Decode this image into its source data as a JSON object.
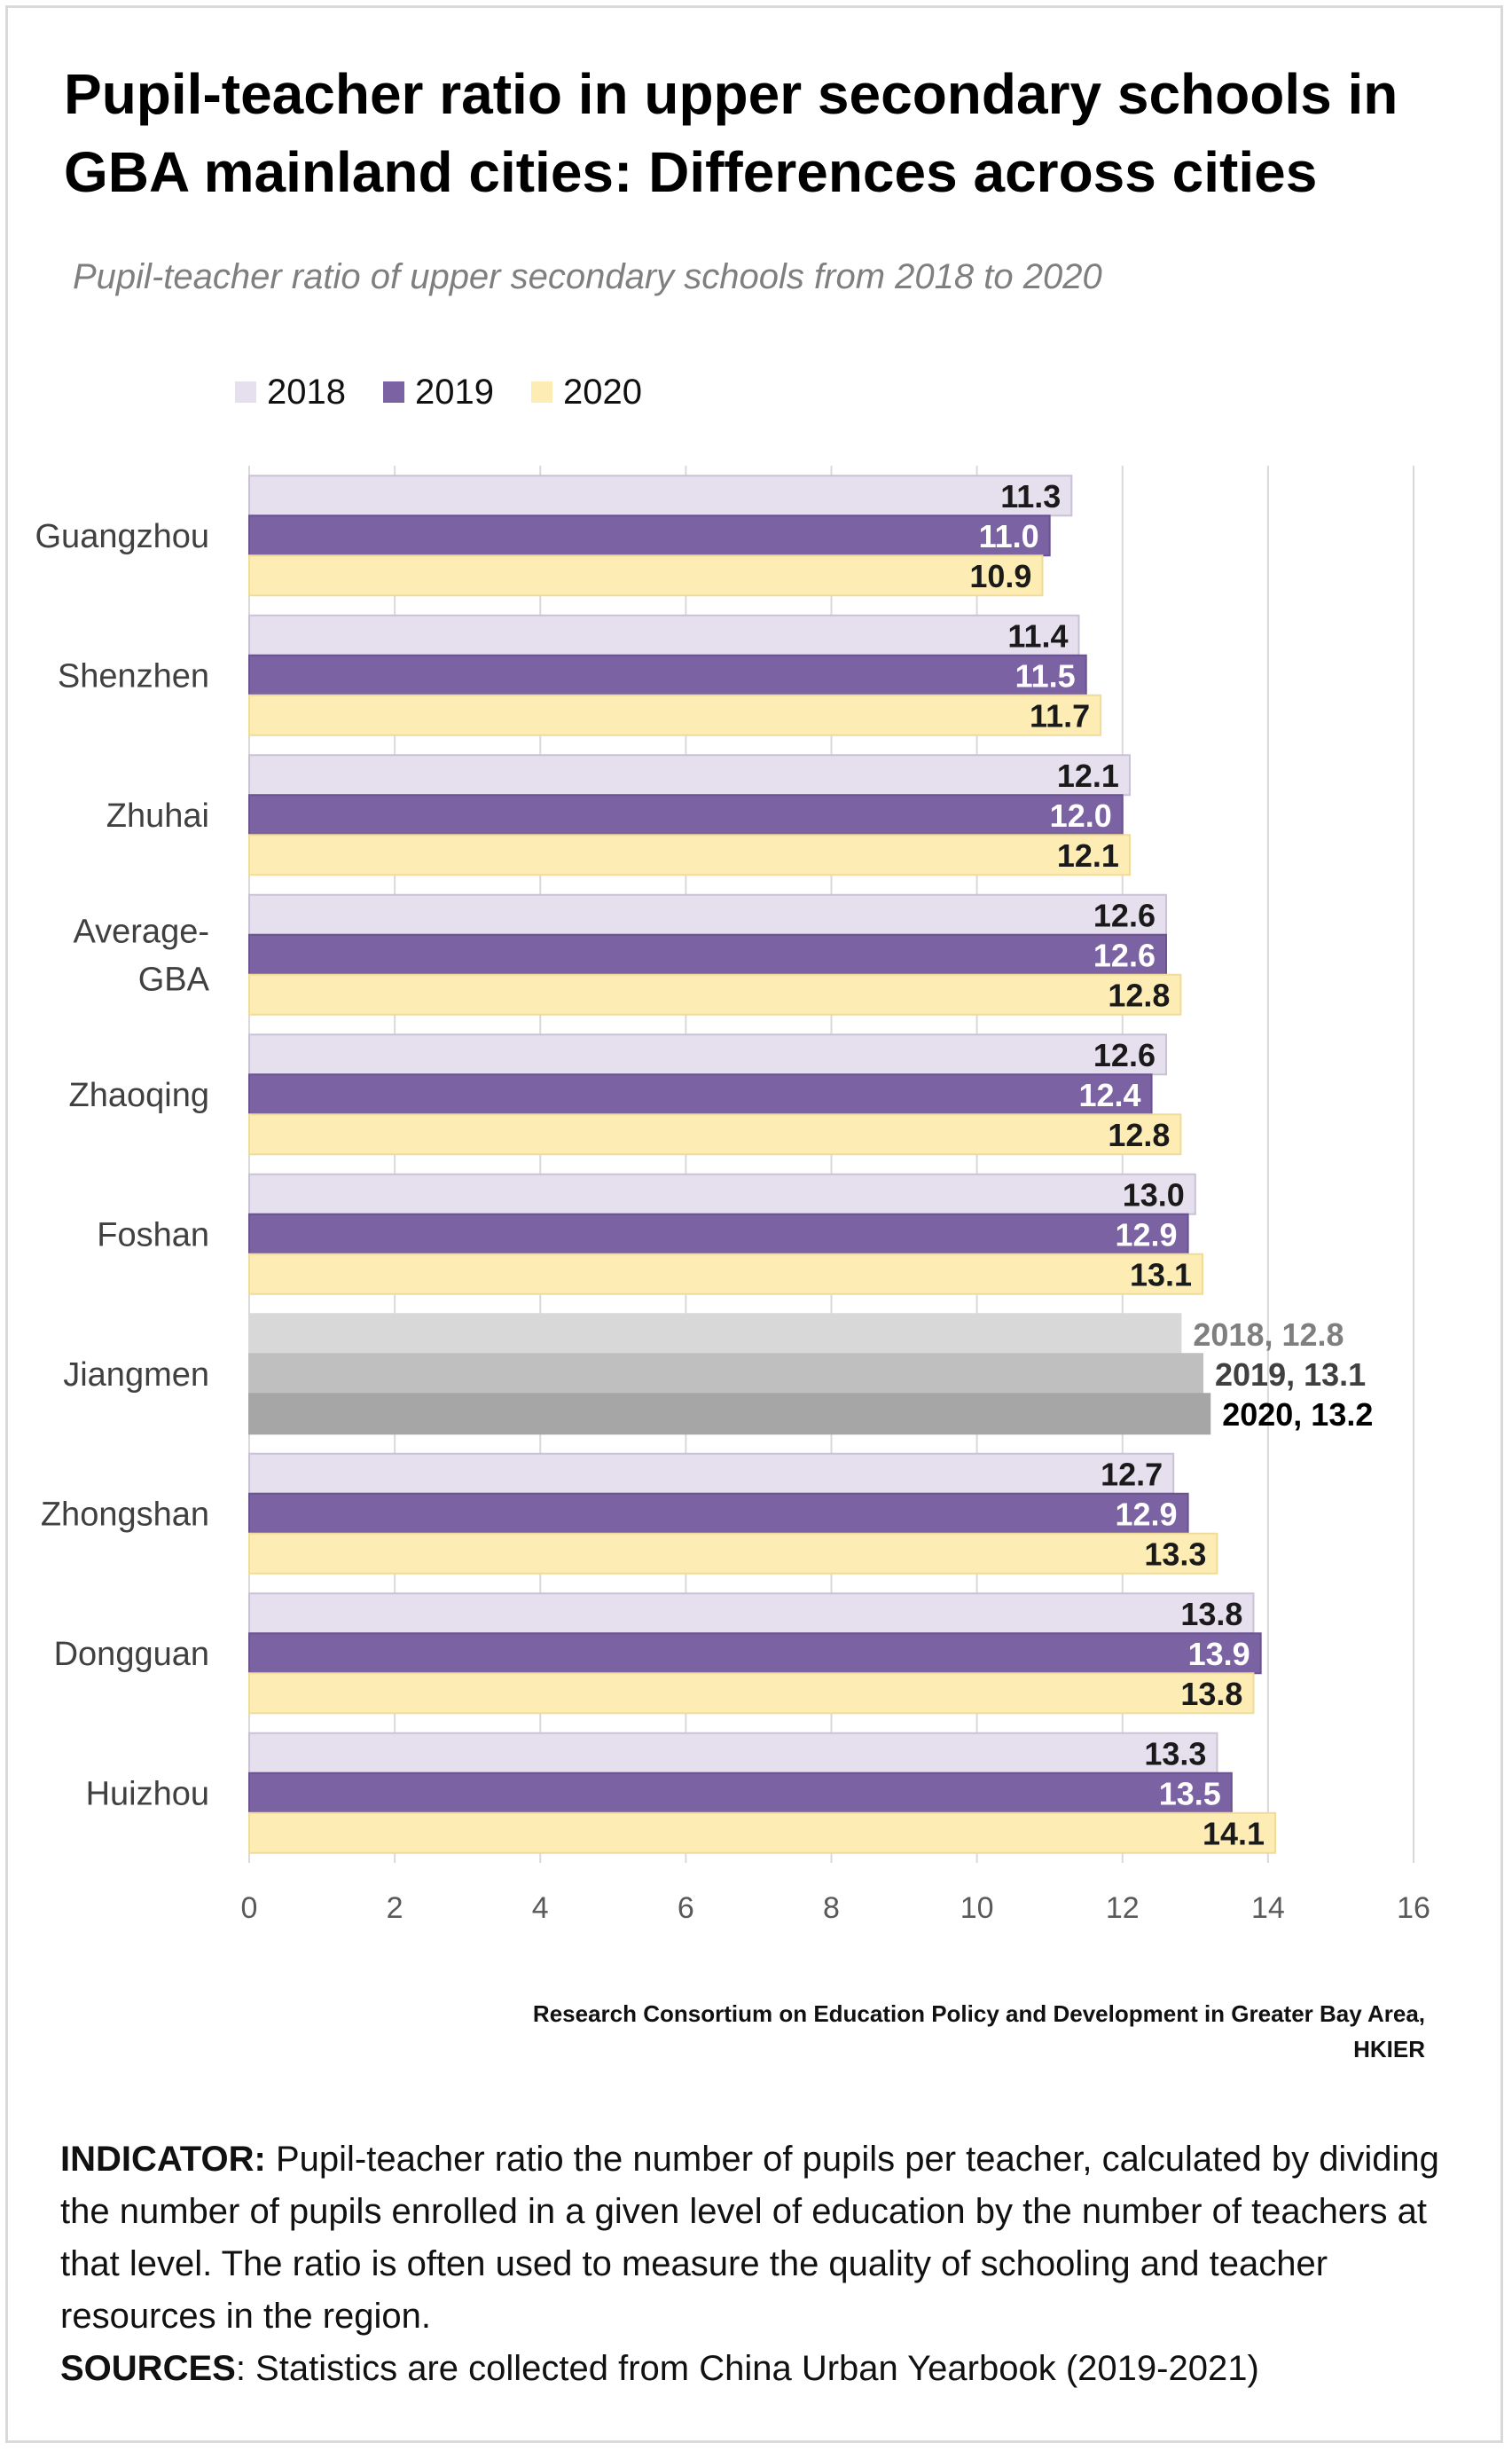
{
  "title": "Pupil-teacher ratio in upper secondary schools in GBA mainland cities: Differences across cities",
  "subtitle": "Pupil-teacher ratio of upper secondary schools from 2018 to 2020",
  "colors": {
    "s2018": "#e6e0ee",
    "s2019": "#7b62a3",
    "s2020": "#fdedb4",
    "highlight_2018": "#d8d8d8",
    "highlight_2019": "#bfbfbf",
    "highlight_2020": "#a6a6a6",
    "highlight_label_2018": "#7f7f7f",
    "highlight_label_2019": "#404040",
    "highlight_label_2020": "#000000"
  },
  "chart_data": {
    "type": "bar",
    "orientation": "horizontal",
    "categories": [
      "Guangzhou",
      "Shenzhen",
      "Zhuhai",
      "Average-\nGBA",
      "Zhaoqing",
      "Foshan",
      "Jiangmen",
      "Zhongshan",
      "Dongguan",
      "Huizhou"
    ],
    "series": [
      {
        "name": "2018",
        "values": [
          11.3,
          11.4,
          12.1,
          12.6,
          12.6,
          13.0,
          12.8,
          12.7,
          13.8,
          13.3
        ]
      },
      {
        "name": "2019",
        "values": [
          11.0,
          11.5,
          12.0,
          12.6,
          12.4,
          12.9,
          13.1,
          12.9,
          13.9,
          13.5
        ]
      },
      {
        "name": "2020",
        "values": [
          10.9,
          11.7,
          12.1,
          12.8,
          12.8,
          13.1,
          13.2,
          13.3,
          13.8,
          14.1
        ]
      }
    ],
    "data_labels": [
      [
        "11.3",
        "11.4",
        "12.1",
        "12.6",
        "12.6",
        "13.0",
        "2018, 12.8",
        "12.7",
        "13.8",
        "13.3"
      ],
      [
        "11.0",
        "11.5",
        "12.0",
        "12.6",
        "12.4",
        "12.9",
        "2019, 13.1",
        "12.9",
        "13.9",
        "13.5"
      ],
      [
        "10.9",
        "11.7",
        "12.1",
        "12.8",
        "12.8",
        "13.1",
        "2020, 13.2",
        "13.3",
        "13.8",
        "14.1"
      ]
    ],
    "highlighted_category": "Jiangmen",
    "xlim": [
      0,
      16
    ],
    "xticks": [
      "0",
      "2",
      "4",
      "6",
      "8",
      "10",
      "12",
      "14",
      "16"
    ],
    "xlabel": "",
    "ylabel": "",
    "grid": "vertical",
    "legend": "top-left"
  },
  "source_note": [
    "Research Consortium on Education Policy and Development in Greater Bay Area,",
    "HKIER"
  ],
  "notes": {
    "indicator_label": "INDICATOR:",
    "indicator_text": " Pupil-teacher ratio the number of pupils per teacher, calculated by dividing the number of pupils enrolled in a given level of education by the number of teachers at that level. The ratio is often used to measure the quality of schooling and teacher resources in the region.",
    "sources_label": "SOURCES",
    "sources_text": ":  Statistics are collected from China Urban Yearbook (2019-2021)"
  }
}
